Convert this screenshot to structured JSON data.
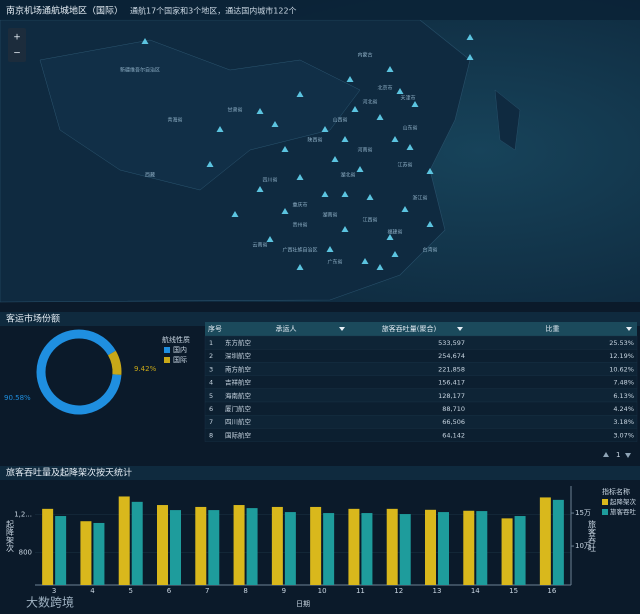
{
  "header": {
    "title": "南京机场通航城地区（国际）",
    "summary": "通航17个国家和3个地区，通达国内城市122个"
  },
  "map": {
    "zoom_in": "+",
    "zoom_out": "−",
    "labels": [
      "新疆维吾尔自治区",
      "西藏",
      "青海省",
      "甘肃省",
      "内蒙古",
      "北京市",
      "天津市",
      "河北省",
      "山西省",
      "山东省",
      "陕西省",
      "河南省",
      "湖北省",
      "江苏省",
      "浙江省",
      "四川省",
      "重庆市",
      "湖南省",
      "江西省",
      "福建省",
      "贵州省",
      "云南省",
      "广西壮族自治区",
      "广东省",
      "台湾省"
    ]
  },
  "share": {
    "title": "客运市场份额"
  },
  "chart_data": [
    {
      "type": "donut",
      "legend_title": "航线性质",
      "categories": [
        "国内",
        "国际"
      ],
      "values": [
        90.58,
        9.42
      ],
      "value_labels": [
        "90.58%",
        "9.42%"
      ],
      "colors": [
        "#1f8fe0",
        "#c8a818"
      ]
    },
    {
      "type": "bar",
      "title": "旅客吞吐量及起降架次按天统计",
      "x_label": "日期",
      "y_label": "起降架次",
      "y2_label": "旅客吞吐",
      "legend_title": "指标名称",
      "categories": [
        "3",
        "4",
        "5",
        "6",
        "7",
        "8",
        "9",
        "10",
        "11",
        "12",
        "13",
        "14",
        "15",
        "16"
      ],
      "series": [
        {
          "name": "起降架次",
          "color": "#d9b81c",
          "values": [
            1260,
            1130,
            1390,
            1300,
            1280,
            1300,
            1280,
            1280,
            1260,
            1260,
            1250,
            1240,
            1160,
            1380
          ]
        },
        {
          "name": "旅客吞吐",
          "color": "#1e9c9c",
          "axis": "y2",
          "values": [
            145500,
            135000,
            167000,
            154500,
            154500,
            157500,
            151500,
            150000,
            150000,
            148500,
            151500,
            153000,
            145500,
            170000
          ]
        }
      ],
      "ylim": [
        460,
        1500
      ],
      "yticks": [
        800,
        {
          "value": 1200,
          "label": "1,2..."
        }
      ],
      "y2lim": [
        41000,
        191000
      ],
      "y2ticks": [
        {
          "value": 100000,
          "label": "10万"
        },
        {
          "value": 150000,
          "label": "15万"
        }
      ]
    }
  ],
  "table": {
    "columns": [
      "序号",
      "承运人",
      "旅客吞吐量(聚合)",
      "比重"
    ],
    "rows": [
      [
        "1",
        "东方航空",
        "533,597",
        "25.53%"
      ],
      [
        "2",
        "深圳航空",
        "254,674",
        "12.19%"
      ],
      [
        "3",
        "南方航空",
        "221,858",
        "10.62%"
      ],
      [
        "4",
        "吉祥航空",
        "156,417",
        "7.48%"
      ],
      [
        "5",
        "海南航空",
        "128,177",
        "6.13%"
      ],
      [
        "6",
        "厦门航空",
        "88,710",
        "4.24%"
      ],
      [
        "7",
        "四川航空",
        "66,506",
        "3.18%"
      ],
      [
        "8",
        "国际航空",
        "64,142",
        "3.07%"
      ]
    ],
    "page": "1"
  },
  "watermark": "大数跨境"
}
